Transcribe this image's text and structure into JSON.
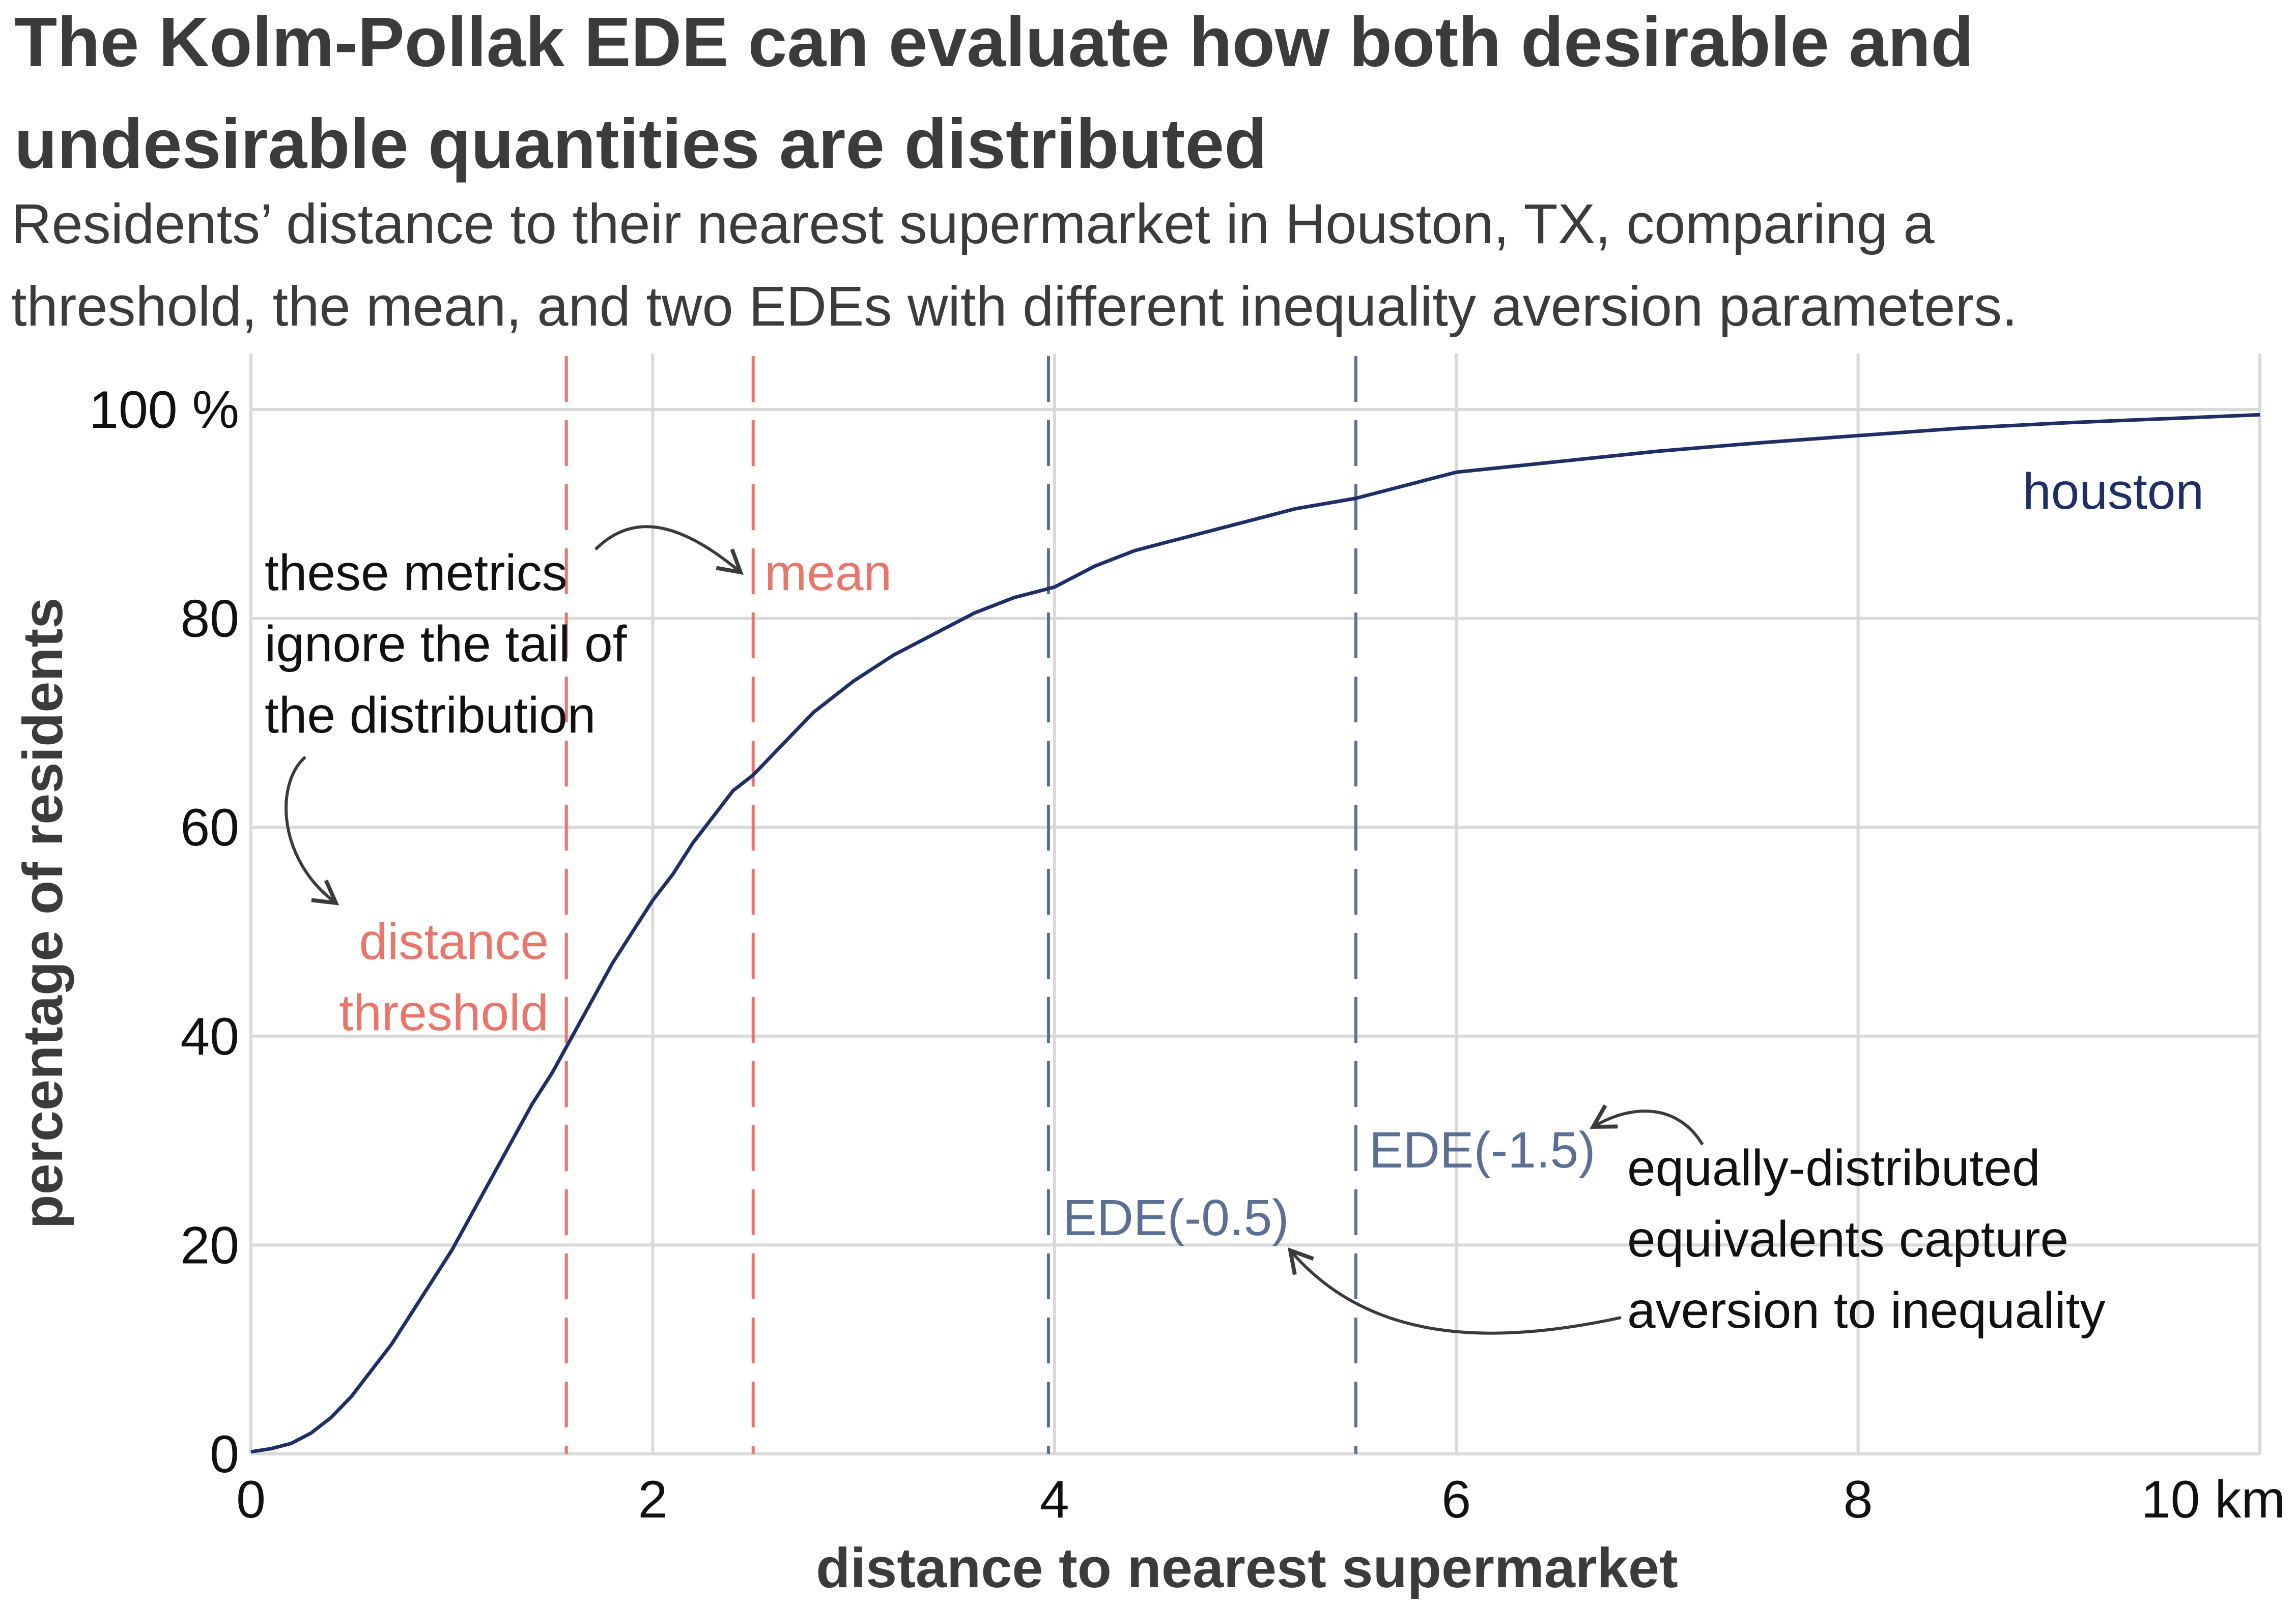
{
  "chart_data": {
    "type": "line",
    "title_lines": [
      "The Kolm-Pollak EDE can evaluate how both desirable and",
      "undesirable quantities are distributed"
    ],
    "subtitle_lines": [
      "Residents’ distance to their nearest supermarket in Houston, TX, comparing a",
      "threshold, the mean, and two EDEs with different inequality aversion parameters."
    ],
    "xlabel": "distance to nearest supermarket",
    "ylabel": "percentage of residents",
    "xlim": [
      0,
      10
    ],
    "ylim": [
      0,
      100
    ],
    "x_ticks": [
      {
        "value": 0,
        "label": "0"
      },
      {
        "value": 2,
        "label": "2"
      },
      {
        "value": 4,
        "label": "4"
      },
      {
        "value": 6,
        "label": "6"
      },
      {
        "value": 8,
        "label": "8"
      },
      {
        "value": 10,
        "label": "10 km"
      }
    ],
    "y_ticks": [
      {
        "value": 0,
        "label": "0"
      },
      {
        "value": 20,
        "label": "20"
      },
      {
        "value": 40,
        "label": "40"
      },
      {
        "value": 60,
        "label": "60"
      },
      {
        "value": 80,
        "label": "80"
      },
      {
        "value": 100,
        "label": "100 %"
      }
    ],
    "grid": true,
    "series": [
      {
        "name": "houston",
        "color": "#1d2f66",
        "points": [
          [
            0.0,
            0.2
          ],
          [
            0.1,
            0.5
          ],
          [
            0.2,
            1.0
          ],
          [
            0.3,
            2.0
          ],
          [
            0.4,
            3.5
          ],
          [
            0.5,
            5.5
          ],
          [
            0.6,
            8.0
          ],
          [
            0.7,
            10.5
          ],
          [
            0.8,
            13.5
          ],
          [
            0.9,
            16.5
          ],
          [
            1.0,
            19.5
          ],
          [
            1.1,
            23.0
          ],
          [
            1.2,
            26.5
          ],
          [
            1.3,
            30.0
          ],
          [
            1.4,
            33.5
          ],
          [
            1.5,
            36.5
          ],
          [
            1.6,
            40.0
          ],
          [
            1.7,
            43.5
          ],
          [
            1.8,
            47.0
          ],
          [
            1.9,
            50.0
          ],
          [
            2.0,
            53.0
          ],
          [
            2.1,
            55.5
          ],
          [
            2.2,
            58.5
          ],
          [
            2.3,
            61.0
          ],
          [
            2.4,
            63.5
          ],
          [
            2.5,
            65.0
          ],
          [
            2.6,
            67.0
          ],
          [
            2.7,
            69.0
          ],
          [
            2.8,
            71.0
          ],
          [
            2.9,
            72.5
          ],
          [
            3.0,
            74.0
          ],
          [
            3.2,
            76.5
          ],
          [
            3.4,
            78.5
          ],
          [
            3.6,
            80.5
          ],
          [
            3.8,
            82.0
          ],
          [
            4.0,
            83.0
          ],
          [
            4.2,
            85.0
          ],
          [
            4.4,
            86.5
          ],
          [
            4.6,
            87.5
          ],
          [
            4.8,
            88.5
          ],
          [
            5.0,
            89.5
          ],
          [
            5.2,
            90.5
          ],
          [
            5.5,
            91.5
          ],
          [
            5.8,
            93.0
          ],
          [
            6.0,
            94.0
          ],
          [
            6.5,
            95.0
          ],
          [
            7.0,
            96.0
          ],
          [
            7.5,
            96.8
          ],
          [
            8.0,
            97.5
          ],
          [
            8.5,
            98.2
          ],
          [
            9.0,
            98.7
          ],
          [
            9.5,
            99.1
          ],
          [
            10.0,
            99.5
          ]
        ]
      }
    ],
    "reference_lines": [
      {
        "name": "distance threshold",
        "x": 1.57,
        "color": "#e8766a",
        "label_lines": [
          "distance",
          "threshold"
        ]
      },
      {
        "name": "mean",
        "x": 2.5,
        "color": "#e8766a",
        "label_lines": [
          "mean"
        ]
      },
      {
        "name": "EDE(-0.5)",
        "x": 3.97,
        "color": "#5b6f95",
        "label_lines": [
          "EDE(-0.5)"
        ]
      },
      {
        "name": "EDE(-1.5)",
        "x": 5.5,
        "color": "#5b6f95",
        "label_lines": [
          "EDE(-1.5)"
        ]
      }
    ],
    "annotations": [
      {
        "name": "tail-note",
        "text_lines": [
          "these metrics",
          "ignore the tail of",
          "the distribution"
        ]
      },
      {
        "name": "ede-note",
        "text_lines": [
          "equally-distributed",
          "equivalents capture",
          "aversion to inequality"
        ]
      }
    ]
  }
}
